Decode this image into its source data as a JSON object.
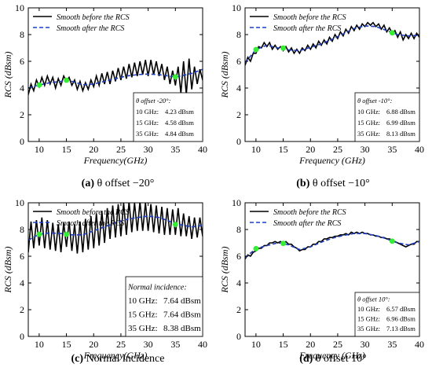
{
  "colors": {
    "before": "#000000",
    "after": "#1f3fbf",
    "marker": "#33ee33"
  },
  "chart_data": [
    {
      "type": "line",
      "caption_tag": "(a)",
      "caption_text": "θ  offset −20°",
      "xlabel": "Frequency(GHz)",
      "ylabel": "RCS (dBsm)",
      "xlim": [
        8,
        40
      ],
      "ylim": [
        0,
        10
      ],
      "xticks": [
        10,
        15,
        20,
        25,
        30,
        35,
        40
      ],
      "yticks": [
        0,
        2,
        4,
        6,
        8,
        10
      ],
      "legend": [
        "Smooth before the RCS",
        "Smooth after the RCS"
      ],
      "series": [
        {
          "name": "Smooth before the RCS",
          "x": [
            8,
            8.5,
            9,
            9.5,
            10,
            10.5,
            11,
            11.5,
            12,
            12.5,
            13,
            13.5,
            14,
            14.5,
            15,
            15.5,
            16,
            16.5,
            17,
            17.5,
            18,
            18.5,
            19,
            19.5,
            20,
            20.5,
            21,
            21.5,
            22,
            22.5,
            23,
            23.5,
            24,
            24.5,
            25,
            25.5,
            26,
            26.5,
            27,
            27.5,
            28,
            28.5,
            29,
            29.5,
            30,
            30.5,
            31,
            31.5,
            32,
            32.5,
            33,
            33.5,
            34,
            34.5,
            35,
            35.5,
            36,
            36.5,
            37,
            37.5,
            38,
            38.5,
            39,
            39.5,
            40
          ],
          "y": [
            3.5,
            4.3,
            3.8,
            4.6,
            4.1,
            4.8,
            4.2,
            4.9,
            4.3,
            4.8,
            4.0,
            4.7,
            4.2,
            4.9,
            4.5,
            4.8,
            4.2,
            4.6,
            3.9,
            4.5,
            3.8,
            4.4,
            3.9,
            4.6,
            4.1,
            4.9,
            4.2,
            5.1,
            4.3,
            5.2,
            4.3,
            5.3,
            4.5,
            5.5,
            4.6,
            5.6,
            4.7,
            5.8,
            4.8,
            5.9,
            4.9,
            6.0,
            5.0,
            6.1,
            4.9,
            6.1,
            5.0,
            6.0,
            4.9,
            5.8,
            4.6,
            5.6,
            4.3,
            5.3,
            4.2,
            5.6,
            3.6,
            6.0,
            3.5,
            6.2,
            3.9,
            5.6,
            4.3,
            5.4,
            4.6
          ]
        },
        {
          "name": "Smooth after the RCS",
          "x": [
            8,
            10,
            12,
            14,
            15,
            16,
            18,
            20,
            22,
            24,
            26,
            28,
            30,
            32,
            34,
            35,
            36,
            38,
            40
          ],
          "y": [
            4.0,
            4.23,
            4.4,
            4.5,
            4.58,
            4.5,
            4.25,
            4.3,
            4.5,
            4.7,
            4.9,
            5.0,
            5.05,
            5.0,
            4.88,
            4.84,
            4.9,
            5.1,
            5.4
          ]
        }
      ],
      "markers": [
        {
          "x": 10,
          "y": 4.23
        },
        {
          "x": 15,
          "y": 4.58
        },
        {
          "x": 35,
          "y": 4.84
        }
      ],
      "annotation_title": "θ offset -20°:",
      "annotation": [
        {
          "freq": "10 GHz:",
          "value": "4.23 dBsm"
        },
        {
          "freq": "15 GHz:",
          "value": "4.58 dBsm"
        },
        {
          "freq": "35 GHz:",
          "value": "4.84 dBsm"
        }
      ]
    },
    {
      "type": "line",
      "caption_tag": "(b)",
      "caption_text": "θ  offset −10°",
      "xlabel": "Frequency (GHz)",
      "ylabel": "RCS (dBsm)",
      "xlim": [
        8,
        40
      ],
      "ylim": [
        0,
        10
      ],
      "xticks": [
        10,
        15,
        20,
        25,
        30,
        35,
        40
      ],
      "yticks": [
        0,
        2,
        4,
        6,
        8,
        10
      ],
      "legend": [
        "Smooth before the RCS",
        "Smooth after the RCS"
      ],
      "series": [
        {
          "name": "Smooth before the RCS",
          "x": [
            8,
            8.5,
            9,
            9.5,
            10,
            10.5,
            11,
            11.5,
            12,
            12.5,
            13,
            13.5,
            14,
            14.5,
            15,
            15.5,
            16,
            16.5,
            17,
            17.5,
            18,
            18.5,
            19,
            19.5,
            20,
            20.5,
            21,
            21.5,
            22,
            22.5,
            23,
            23.5,
            24,
            24.5,
            25,
            25.5,
            26,
            26.5,
            27,
            27.5,
            28,
            28.5,
            29,
            29.5,
            30,
            30.5,
            31,
            31.5,
            32,
            32.5,
            33,
            33.5,
            34,
            34.5,
            35,
            35.5,
            36,
            36.5,
            37,
            37.5,
            38,
            38.5,
            39,
            39.5,
            40
          ],
          "y": [
            5.7,
            6.3,
            6.0,
            6.6,
            6.6,
            7.1,
            7.0,
            7.4,
            7.1,
            7.4,
            6.9,
            7.2,
            6.9,
            7.1,
            6.8,
            7.1,
            6.7,
            7.0,
            6.6,
            6.9,
            6.6,
            7.0,
            6.8,
            7.2,
            6.9,
            7.3,
            7.0,
            7.5,
            7.2,
            7.6,
            7.3,
            7.8,
            7.5,
            8.0,
            7.7,
            8.2,
            7.9,
            8.4,
            8.1,
            8.6,
            8.3,
            8.7,
            8.4,
            8.8,
            8.6,
            8.9,
            8.7,
            8.9,
            8.6,
            8.8,
            8.4,
            8.7,
            8.2,
            8.5,
            8.1,
            8.3,
            7.8,
            8.2,
            7.6,
            8.0,
            7.7,
            8.1,
            7.7,
            8.1,
            7.8
          ]
        },
        {
          "name": "Smooth after the RCS",
          "x": [
            8,
            10,
            12,
            14,
            15,
            16,
            18,
            20,
            22,
            24,
            26,
            28,
            30,
            32,
            34,
            35,
            36,
            38,
            40
          ],
          "y": [
            5.9,
            6.88,
            7.2,
            7.0,
            6.99,
            6.85,
            6.8,
            7.05,
            7.3,
            7.65,
            8.05,
            8.45,
            8.65,
            8.6,
            8.3,
            8.13,
            8.0,
            7.9,
            7.95
          ]
        }
      ],
      "markers": [
        {
          "x": 10,
          "y": 6.88
        },
        {
          "x": 15,
          "y": 6.99
        },
        {
          "x": 35,
          "y": 8.13
        }
      ],
      "annotation_title": "θ offset -10°:",
      "annotation": [
        {
          "freq": "10 GHz:",
          "value": "6.88 dBsm"
        },
        {
          "freq": "15 GHz:",
          "value": "6.99 dBsm"
        },
        {
          "freq": "35 GHz:",
          "value": "8.13 dBsm"
        }
      ]
    },
    {
      "type": "line",
      "caption_tag": "(c)",
      "caption_text": "Normal incidence",
      "xlabel": "Frequency(GHz)",
      "ylabel": "RCS (dBsm)",
      "xlim": [
        8,
        40
      ],
      "ylim": [
        0,
        10
      ],
      "xticks": [
        10,
        15,
        20,
        25,
        30,
        35,
        40
      ],
      "yticks": [
        0,
        2,
        4,
        6,
        8,
        10
      ],
      "legend": [
        "Smooth before the RCS",
        "Smooth after the RCS"
      ],
      "series": [
        {
          "name": "Smooth before the RCS",
          "x": [
            8,
            8.5,
            9,
            9.5,
            10,
            10.5,
            11,
            11.5,
            12,
            12.5,
            13,
            13.5,
            14,
            14.5,
            15,
            15.5,
            16,
            16.5,
            17,
            17.5,
            18,
            18.5,
            19,
            19.5,
            20,
            20.5,
            21,
            21.5,
            22,
            22.5,
            23,
            23.5,
            24,
            24.5,
            25,
            25.5,
            26,
            26.5,
            27,
            27.5,
            28,
            28.5,
            29,
            29.5,
            30,
            30.5,
            31,
            31.5,
            32,
            32.5,
            33,
            33.5,
            34,
            34.5,
            35,
            35.5,
            36,
            36.5,
            37,
            37.5,
            38,
            38.5,
            39,
            39.5,
            40
          ],
          "y": [
            6.3,
            8.6,
            6.6,
            8.7,
            6.8,
            8.9,
            6.6,
            8.7,
            6.5,
            8.5,
            6.4,
            8.4,
            6.3,
            8.5,
            6.7,
            8.6,
            6.4,
            8.4,
            6.2,
            8.6,
            6.3,
            8.8,
            6.5,
            9.0,
            6.6,
            9.2,
            6.8,
            9.4,
            7.0,
            9.6,
            7.3,
            9.8,
            7.4,
            9.9,
            7.5,
            10.0,
            7.6,
            10.1,
            7.8,
            10.0,
            7.9,
            10.1,
            7.9,
            10.0,
            7.9,
            9.9,
            7.8,
            9.8,
            7.7,
            9.7,
            7.6,
            9.6,
            7.6,
            9.5,
            7.6,
            9.6,
            7.5,
            9.2,
            7.5,
            9.0,
            7.3,
            8.9,
            7.4,
            8.9,
            7.5
          ]
        },
        {
          "name": "Smooth after the RCS",
          "x": [
            8,
            10,
            12,
            14,
            15,
            16,
            18,
            20,
            22,
            24,
            26,
            28,
            30,
            32,
            34,
            35,
            36,
            38,
            40
          ],
          "y": [
            7.2,
            7.64,
            7.75,
            7.7,
            7.64,
            7.6,
            7.6,
            7.9,
            8.2,
            8.5,
            8.75,
            8.9,
            9.0,
            8.9,
            8.6,
            8.38,
            8.35,
            8.2,
            8.3
          ]
        }
      ],
      "markers": [
        {
          "x": 10,
          "y": 7.64
        },
        {
          "x": 15,
          "y": 7.64
        },
        {
          "x": 35,
          "y": 8.38
        }
      ],
      "annotation_title": "Normal incidence:",
      "annotation": [
        {
          "freq": "10 GHz:",
          "value": "7.64 dBsm"
        },
        {
          "freq": "15 GHz:",
          "value": "7.64 dBsm"
        },
        {
          "freq": "35 GHz:",
          "value": "8.38 dBsm"
        }
      ]
    },
    {
      "type": "line",
      "caption_tag": "(d)",
      "caption_text": "θ  offset 10°",
      "xlabel": "Frequency (GHz)",
      "ylabel": "RCS (dBsm)",
      "xlim": [
        8,
        40
      ],
      "ylim": [
        0,
        10
      ],
      "xticks": [
        10,
        15,
        20,
        25,
        30,
        35,
        40
      ],
      "yticks": [
        0,
        2,
        4,
        6,
        8,
        10
      ],
      "legend": [
        "Smooth before the RCS",
        "Smooth after the RCS"
      ],
      "series": [
        {
          "name": "Smooth before the RCS",
          "x": [
            8,
            8.5,
            9,
            9.5,
            10,
            10.5,
            11,
            11.5,
            12,
            12.5,
            13,
            13.5,
            14,
            14.5,
            15,
            15.5,
            16,
            16.5,
            17,
            17.5,
            18,
            18.5,
            19,
            19.5,
            20,
            20.5,
            21,
            21.5,
            22,
            22.5,
            23,
            23.5,
            24,
            24.5,
            25,
            25.5,
            26,
            26.5,
            27,
            27.5,
            28,
            28.5,
            29,
            29.5,
            30,
            30.5,
            31,
            31.5,
            32,
            32.5,
            33,
            33.5,
            34,
            34.5,
            35,
            35.5,
            36,
            36.5,
            37,
            37.5,
            38,
            38.5,
            39,
            39.5,
            40
          ],
          "y": [
            5.8,
            6.1,
            6.0,
            6.3,
            6.4,
            6.6,
            6.6,
            6.8,
            6.8,
            7.0,
            7.0,
            7.1,
            7.0,
            7.1,
            7.0,
            7.1,
            6.9,
            6.9,
            6.7,
            6.6,
            6.4,
            6.5,
            6.5,
            6.7,
            6.7,
            6.9,
            6.9,
            7.1,
            7.1,
            7.3,
            7.3,
            7.4,
            7.4,
            7.5,
            7.5,
            7.6,
            7.6,
            7.7,
            7.6,
            7.8,
            7.7,
            7.8,
            7.7,
            7.8,
            7.7,
            7.7,
            7.6,
            7.6,
            7.5,
            7.5,
            7.4,
            7.4,
            7.3,
            7.3,
            7.2,
            7.1,
            7.0,
            6.9,
            6.8,
            6.7,
            6.8,
            6.9,
            6.9,
            7.1,
            7.1
          ]
        },
        {
          "name": "Smooth after the RCS",
          "x": [
            8,
            10,
            12,
            14,
            15,
            16,
            18,
            20,
            22,
            24,
            26,
            28,
            30,
            32,
            34,
            35,
            36,
            38,
            40
          ],
          "y": [
            5.9,
            6.57,
            6.8,
            7.0,
            6.96,
            6.85,
            6.5,
            6.7,
            7.05,
            7.35,
            7.55,
            7.7,
            7.7,
            7.55,
            7.3,
            7.13,
            7.0,
            6.85,
            7.1
          ]
        }
      ],
      "markers": [
        {
          "x": 10,
          "y": 6.57
        },
        {
          "x": 15,
          "y": 6.96
        },
        {
          "x": 35,
          "y": 7.13
        }
      ],
      "annotation_title": "θ offset 10°:",
      "annotation": [
        {
          "freq": "10 GHz:",
          "value": "6.57 dBsm"
        },
        {
          "freq": "15 GHz:",
          "value": "6.96 dBsm"
        },
        {
          "freq": "35 GHz:",
          "value": "7.13 dBsm"
        }
      ]
    }
  ]
}
